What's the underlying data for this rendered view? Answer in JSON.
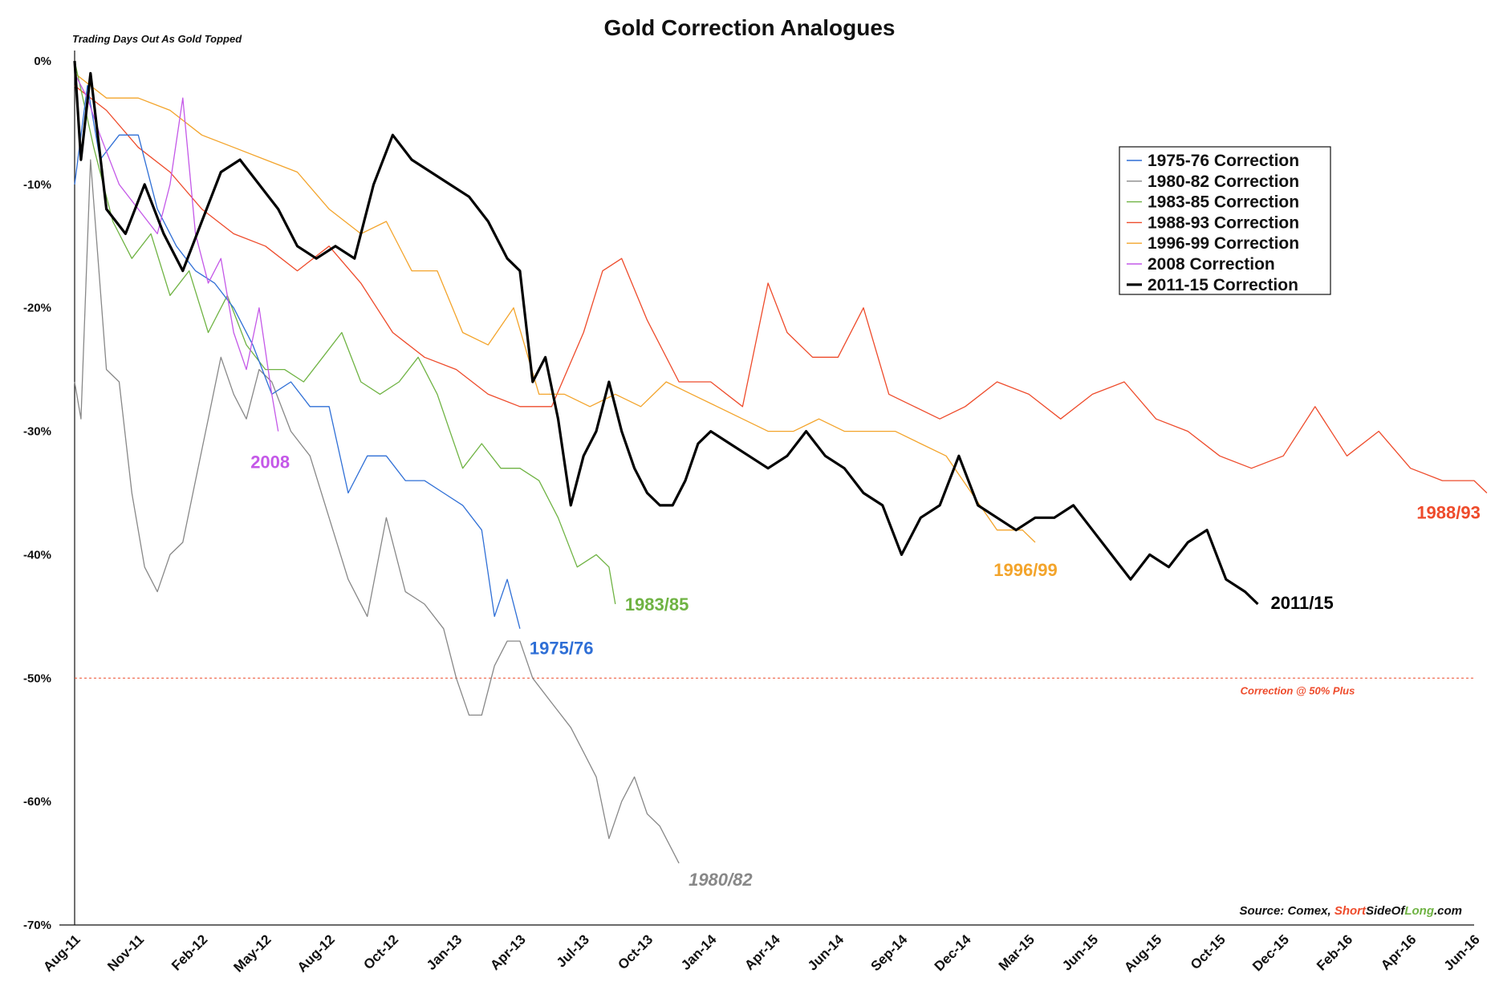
{
  "chart_data": {
    "type": "line",
    "title": "Gold Correction Analogues",
    "subtitle": "Trading Days Out As Gold Topped",
    "y_ticks": [
      "0%",
      "-10%",
      "-20%",
      "-30%",
      "-40%",
      "-50%",
      "-60%",
      "-70%"
    ],
    "ylim": [
      -70,
      0
    ],
    "x_ticks": [
      "Aug-11",
      "Nov-11",
      "Feb-12",
      "May-12",
      "Aug-12",
      "Oct-12",
      "Jan-13",
      "Apr-13",
      "Jul-13",
      "Oct-13",
      "Jan-14",
      "Apr-14",
      "Jun-14",
      "Sep-14",
      "Dec-14",
      "Mar-15",
      "Jun-15",
      "Aug-15",
      "Oct-15",
      "Dec-15",
      "Feb-16",
      "Apr-16",
      "Jun-16"
    ],
    "grid": false,
    "legend_position": "top-right",
    "series": [
      {
        "name": "1975-76 Correction",
        "color": "#2f6fd6",
        "end_label": "1975/76",
        "points": [
          [
            0,
            -10
          ],
          [
            0.2,
            -2
          ],
          [
            0.4,
            -8
          ],
          [
            0.7,
            -6
          ],
          [
            1.0,
            -6
          ],
          [
            1.3,
            -12
          ],
          [
            1.6,
            -15
          ],
          [
            1.9,
            -17
          ],
          [
            2.2,
            -18
          ],
          [
            2.5,
            -20
          ],
          [
            2.8,
            -23
          ],
          [
            3.1,
            -27
          ],
          [
            3.4,
            -26
          ],
          [
            3.7,
            -28
          ],
          [
            4.0,
            -28
          ],
          [
            4.3,
            -35
          ],
          [
            4.6,
            -32
          ],
          [
            4.9,
            -32
          ],
          [
            5.2,
            -34
          ],
          [
            5.5,
            -34
          ],
          [
            5.8,
            -35
          ],
          [
            6.1,
            -36
          ],
          [
            6.4,
            -38
          ],
          [
            6.6,
            -45
          ],
          [
            6.8,
            -42
          ],
          [
            7.0,
            -46
          ]
        ]
      },
      {
        "name": "1980-82 Correction",
        "color": "#888888",
        "end_label": "1980/82",
        "points": [
          [
            0,
            -26
          ],
          [
            0.1,
            -29
          ],
          [
            0.25,
            -8
          ],
          [
            0.5,
            -25
          ],
          [
            0.7,
            -26
          ],
          [
            0.9,
            -35
          ],
          [
            1.1,
            -41
          ],
          [
            1.3,
            -43
          ],
          [
            1.5,
            -40
          ],
          [
            1.7,
            -39
          ],
          [
            1.9,
            -34
          ],
          [
            2.1,
            -29
          ],
          [
            2.3,
            -24
          ],
          [
            2.5,
            -27
          ],
          [
            2.7,
            -29
          ],
          [
            2.9,
            -25
          ],
          [
            3.1,
            -26
          ],
          [
            3.4,
            -30
          ],
          [
            3.7,
            -32
          ],
          [
            4.0,
            -37
          ],
          [
            4.3,
            -42
          ],
          [
            4.6,
            -45
          ],
          [
            4.9,
            -37
          ],
          [
            5.2,
            -43
          ],
          [
            5.5,
            -44
          ],
          [
            5.8,
            -46
          ],
          [
            6.0,
            -50
          ],
          [
            6.2,
            -53
          ],
          [
            6.4,
            -53
          ],
          [
            6.6,
            -49
          ],
          [
            6.8,
            -47
          ],
          [
            7.0,
            -47
          ],
          [
            7.2,
            -50
          ],
          [
            7.5,
            -52
          ],
          [
            7.8,
            -54
          ],
          [
            8.0,
            -56
          ],
          [
            8.2,
            -58
          ],
          [
            8.4,
            -63
          ],
          [
            8.6,
            -60
          ],
          [
            8.8,
            -58
          ],
          [
            9.0,
            -61
          ],
          [
            9.2,
            -62
          ],
          [
            9.4,
            -64
          ],
          [
            9.5,
            -65
          ]
        ]
      },
      {
        "name": "1983-85 Correction",
        "color": "#6fb343",
        "end_label": "1983/85",
        "points": [
          [
            0,
            0
          ],
          [
            0.3,
            -7
          ],
          [
            0.6,
            -13
          ],
          [
            0.9,
            -16
          ],
          [
            1.2,
            -14
          ],
          [
            1.5,
            -19
          ],
          [
            1.8,
            -17
          ],
          [
            2.1,
            -22
          ],
          [
            2.4,
            -19
          ],
          [
            2.7,
            -23
          ],
          [
            3.0,
            -25
          ],
          [
            3.3,
            -25
          ],
          [
            3.6,
            -26
          ],
          [
            3.9,
            -24
          ],
          [
            4.2,
            -22
          ],
          [
            4.5,
            -26
          ],
          [
            4.8,
            -27
          ],
          [
            5.1,
            -26
          ],
          [
            5.4,
            -24
          ],
          [
            5.7,
            -27
          ],
          [
            5.9,
            -30
          ],
          [
            6.1,
            -33
          ],
          [
            6.4,
            -31
          ],
          [
            6.7,
            -33
          ],
          [
            7.0,
            -33
          ],
          [
            7.3,
            -34
          ],
          [
            7.6,
            -37
          ],
          [
            7.9,
            -41
          ],
          [
            8.2,
            -40
          ],
          [
            8.4,
            -41
          ],
          [
            8.5,
            -44
          ]
        ]
      },
      {
        "name": "1988-93 Correction",
        "color": "#ee4b2b",
        "end_label": "1988/93",
        "points": [
          [
            0,
            -2
          ],
          [
            0.5,
            -4
          ],
          [
            1.0,
            -7
          ],
          [
            1.5,
            -9
          ],
          [
            2.0,
            -12
          ],
          [
            2.5,
            -14
          ],
          [
            3.0,
            -15
          ],
          [
            3.5,
            -17
          ],
          [
            4.0,
            -15
          ],
          [
            4.5,
            -18
          ],
          [
            5.0,
            -22
          ],
          [
            5.5,
            -24
          ],
          [
            6.0,
            -25
          ],
          [
            6.5,
            -27
          ],
          [
            7.0,
            -28
          ],
          [
            7.5,
            -28
          ],
          [
            8.0,
            -22
          ],
          [
            8.3,
            -17
          ],
          [
            8.6,
            -16
          ],
          [
            9.0,
            -21
          ],
          [
            9.5,
            -26
          ],
          [
            10.0,
            -26
          ],
          [
            10.5,
            -28
          ],
          [
            10.9,
            -18
          ],
          [
            11.2,
            -22
          ],
          [
            11.6,
            -24
          ],
          [
            12.0,
            -24
          ],
          [
            12.4,
            -20
          ],
          [
            12.8,
            -27
          ],
          [
            13.2,
            -28
          ],
          [
            13.6,
            -29
          ],
          [
            14.0,
            -28
          ],
          [
            14.5,
            -26
          ],
          [
            15.0,
            -27
          ],
          [
            15.5,
            -29
          ],
          [
            16.0,
            -27
          ],
          [
            16.5,
            -26
          ],
          [
            17.0,
            -29
          ],
          [
            17.5,
            -30
          ],
          [
            18.0,
            -32
          ],
          [
            18.5,
            -33
          ],
          [
            19.0,
            -32
          ],
          [
            19.5,
            -28
          ],
          [
            20.0,
            -32
          ],
          [
            20.5,
            -30
          ],
          [
            21.0,
            -33
          ],
          [
            21.5,
            -34
          ],
          [
            22.0,
            -34
          ],
          [
            22.2,
            -35
          ]
        ]
      },
      {
        "name": "1996-99 Correction",
        "color": "#f3a42b",
        "end_label": "1996/99",
        "points": [
          [
            0,
            -1
          ],
          [
            0.5,
            -3
          ],
          [
            1.0,
            -3
          ],
          [
            1.5,
            -4
          ],
          [
            2.0,
            -6
          ],
          [
            2.5,
            -7
          ],
          [
            3.0,
            -8
          ],
          [
            3.5,
            -9
          ],
          [
            4.0,
            -12
          ],
          [
            4.5,
            -14
          ],
          [
            4.9,
            -13
          ],
          [
            5.3,
            -17
          ],
          [
            5.7,
            -17
          ],
          [
            6.1,
            -22
          ],
          [
            6.5,
            -23
          ],
          [
            6.9,
            -20
          ],
          [
            7.3,
            -27
          ],
          [
            7.7,
            -27
          ],
          [
            8.1,
            -28
          ],
          [
            8.5,
            -27
          ],
          [
            8.9,
            -28
          ],
          [
            9.3,
            -26
          ],
          [
            9.7,
            -27
          ],
          [
            10.1,
            -28
          ],
          [
            10.5,
            -29
          ],
          [
            10.9,
            -30
          ],
          [
            11.3,
            -30
          ],
          [
            11.7,
            -29
          ],
          [
            12.1,
            -30
          ],
          [
            12.5,
            -30
          ],
          [
            12.9,
            -30
          ],
          [
            13.3,
            -31
          ],
          [
            13.7,
            -32
          ],
          [
            14.1,
            -35
          ],
          [
            14.5,
            -38
          ],
          [
            14.9,
            -38
          ],
          [
            15.1,
            -39
          ]
        ]
      },
      {
        "name": "2008 Correction",
        "color": "#c458e8",
        "end_label": "2008",
        "points": [
          [
            0,
            -1
          ],
          [
            0.2,
            -3
          ],
          [
            0.4,
            -6
          ],
          [
            0.7,
            -10
          ],
          [
            1.0,
            -12
          ],
          [
            1.3,
            -14
          ],
          [
            1.5,
            -10
          ],
          [
            1.7,
            -3
          ],
          [
            1.9,
            -14
          ],
          [
            2.1,
            -18
          ],
          [
            2.3,
            -16
          ],
          [
            2.5,
            -22
          ],
          [
            2.7,
            -25
          ],
          [
            2.9,
            -20
          ],
          [
            3.1,
            -27
          ],
          [
            3.2,
            -30
          ]
        ]
      },
      {
        "name": "2011-15 Correction",
        "color": "#000000",
        "end_label": "2011/15",
        "points": [
          [
            0,
            0
          ],
          [
            0.1,
            -8
          ],
          [
            0.25,
            -1
          ],
          [
            0.5,
            -12
          ],
          [
            0.8,
            -14
          ],
          [
            1.1,
            -10
          ],
          [
            1.4,
            -14
          ],
          [
            1.7,
            -17
          ],
          [
            2.0,
            -13
          ],
          [
            2.3,
            -9
          ],
          [
            2.6,
            -8
          ],
          [
            2.9,
            -10
          ],
          [
            3.2,
            -12
          ],
          [
            3.5,
            -15
          ],
          [
            3.8,
            -16
          ],
          [
            4.1,
            -15
          ],
          [
            4.4,
            -16
          ],
          [
            4.7,
            -10
          ],
          [
            5.0,
            -6
          ],
          [
            5.3,
            -8
          ],
          [
            5.6,
            -9
          ],
          [
            5.9,
            -10
          ],
          [
            6.2,
            -11
          ],
          [
            6.5,
            -13
          ],
          [
            6.8,
            -16
          ],
          [
            7.0,
            -17
          ],
          [
            7.2,
            -26
          ],
          [
            7.4,
            -24
          ],
          [
            7.6,
            -29
          ],
          [
            7.8,
            -36
          ],
          [
            8.0,
            -32
          ],
          [
            8.2,
            -30
          ],
          [
            8.4,
            -26
          ],
          [
            8.6,
            -30
          ],
          [
            8.8,
            -33
          ],
          [
            9.0,
            -35
          ],
          [
            9.2,
            -36
          ],
          [
            9.4,
            -36
          ],
          [
            9.6,
            -34
          ],
          [
            9.8,
            -31
          ],
          [
            10.0,
            -30
          ],
          [
            10.3,
            -31
          ],
          [
            10.6,
            -32
          ],
          [
            10.9,
            -33
          ],
          [
            11.2,
            -32
          ],
          [
            11.5,
            -30
          ],
          [
            11.8,
            -32
          ],
          [
            12.1,
            -33
          ],
          [
            12.4,
            -35
          ],
          [
            12.7,
            -36
          ],
          [
            13.0,
            -40
          ],
          [
            13.3,
            -37
          ],
          [
            13.6,
            -36
          ],
          [
            13.9,
            -32
          ],
          [
            14.2,
            -36
          ],
          [
            14.5,
            -37
          ],
          [
            14.8,
            -38
          ],
          [
            15.1,
            -37
          ],
          [
            15.4,
            -37
          ],
          [
            15.7,
            -36
          ],
          [
            16.0,
            -38
          ],
          [
            16.3,
            -40
          ],
          [
            16.6,
            -42
          ],
          [
            16.9,
            -40
          ],
          [
            17.2,
            -41
          ],
          [
            17.5,
            -39
          ],
          [
            17.8,
            -38
          ],
          [
            18.1,
            -42
          ],
          [
            18.4,
            -43
          ],
          [
            18.6,
            -44
          ]
        ]
      }
    ],
    "reference_line": {
      "value": -50,
      "label": "Correction @ 50% Plus",
      "color": "#ee4b2b"
    },
    "source": {
      "prefix": "Source: Comex, ",
      "short": "Short",
      "side_of": "SideOf",
      "long": "Long",
      "suffix": ".com"
    }
  }
}
